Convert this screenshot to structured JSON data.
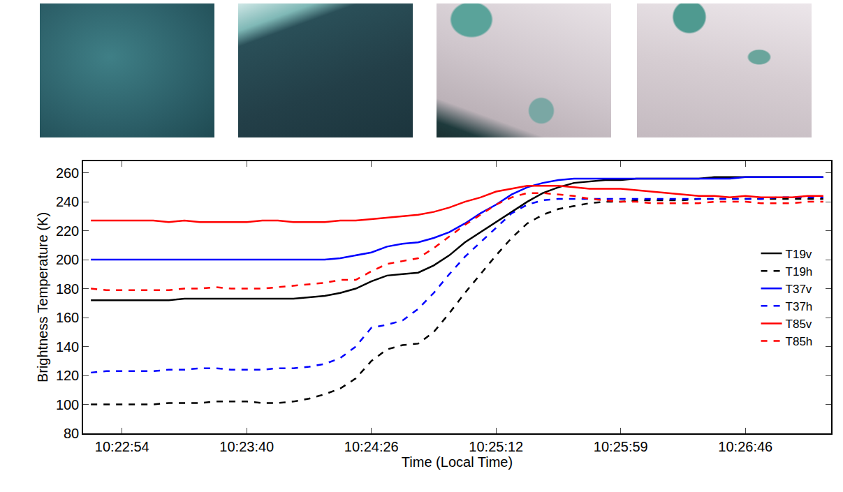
{
  "chart_data": {
    "type": "line",
    "xlabel": "Time (Local Time)",
    "ylabel": "Brightness Temperature (K)",
    "categories": [
      null,
      null,
      "10:22:54",
      null,
      null,
      null,
      null,
      null,
      null,
      null,
      "10:23:40",
      null,
      null,
      null,
      null,
      null,
      null,
      null,
      "10:24:26",
      null,
      null,
      null,
      null,
      null,
      null,
      null,
      "10:25:12",
      null,
      null,
      null,
      null,
      null,
      null,
      null,
      "10:25:59",
      null,
      null,
      null,
      null,
      null,
      null,
      null,
      "10:26:46",
      null,
      null,
      null,
      null,
      null
    ],
    "ylim": [
      80,
      268
    ],
    "yticks": [
      80,
      100,
      120,
      140,
      160,
      180,
      200,
      220,
      240,
      260
    ],
    "grid": false,
    "legend": "right",
    "series": [
      {
        "name": "T19v",
        "color": "#000000",
        "line_style": "solid",
        "values": [
          172,
          172,
          172,
          172,
          172,
          172,
          173,
          173,
          173,
          173,
          173,
          173,
          173,
          173,
          174,
          175,
          177,
          180,
          185,
          189,
          190,
          191,
          196,
          203,
          212,
          219,
          226,
          233,
          240,
          246,
          250,
          253,
          254,
          255,
          255,
          256,
          256,
          256,
          256,
          256,
          257,
          257,
          257,
          257,
          257,
          257,
          257,
          257
        ]
      },
      {
        "name": "T19h",
        "color": "#000000",
        "line_style": "dash",
        "values": [
          100,
          100,
          100,
          100,
          100,
          101,
          101,
          101,
          102,
          102,
          102,
          101,
          101,
          102,
          104,
          107,
          111,
          118,
          130,
          138,
          141,
          142,
          150,
          163,
          177,
          190,
          203,
          215,
          225,
          231,
          235,
          237,
          239,
          240,
          240,
          241,
          241,
          241,
          241,
          242,
          242,
          242,
          242,
          242,
          242,
          242,
          242,
          242
        ]
      },
      {
        "name": "T37v",
        "color": "#0000ff",
        "line_style": "solid",
        "values": [
          200,
          200,
          200,
          200,
          200,
          200,
          200,
          200,
          200,
          200,
          200,
          200,
          200,
          200,
          200,
          200,
          201,
          203,
          205,
          209,
          211,
          212,
          215,
          219,
          225,
          232,
          238,
          245,
          250,
          253,
          255,
          256,
          256,
          256,
          256,
          256,
          256,
          256,
          256,
          256,
          256,
          256,
          257,
          257,
          257,
          257,
          257,
          257
        ]
      },
      {
        "name": "T37h",
        "color": "#0000ff",
        "line_style": "dash",
        "values": [
          122,
          123,
          123,
          123,
          123,
          124,
          124,
          125,
          125,
          124,
          124,
          124,
          125,
          125,
          126,
          128,
          132,
          140,
          153,
          155,
          158,
          166,
          177,
          190,
          202,
          212,
          222,
          232,
          238,
          241,
          242,
          242,
          242,
          242,
          242,
          242,
          242,
          242,
          242,
          242,
          242,
          242,
          242,
          242,
          243,
          243,
          243,
          243
        ]
      },
      {
        "name": "T85v",
        "color": "#ff0000",
        "line_style": "solid",
        "values": [
          227,
          227,
          227,
          227,
          227,
          226,
          227,
          226,
          226,
          226,
          226,
          227,
          227,
          226,
          226,
          226,
          227,
          227,
          228,
          229,
          230,
          231,
          233,
          236,
          240,
          243,
          247,
          249,
          251,
          251,
          251,
          250,
          249,
          249,
          249,
          248,
          247,
          246,
          245,
          244,
          244,
          243,
          244,
          243,
          243,
          243,
          244,
          244
        ]
      },
      {
        "name": "T85h",
        "color": "#ff0000",
        "line_style": "dash",
        "values": [
          180,
          179,
          179,
          179,
          179,
          179,
          180,
          180,
          181,
          180,
          180,
          180,
          181,
          182,
          183,
          184,
          186,
          186,
          192,
          197,
          199,
          201,
          208,
          216,
          224,
          231,
          238,
          243,
          246,
          246,
          245,
          244,
          242,
          241,
          240,
          240,
          239,
          239,
          239,
          239,
          240,
          240,
          240,
          239,
          239,
          239,
          240,
          240
        ]
      }
    ]
  }
}
